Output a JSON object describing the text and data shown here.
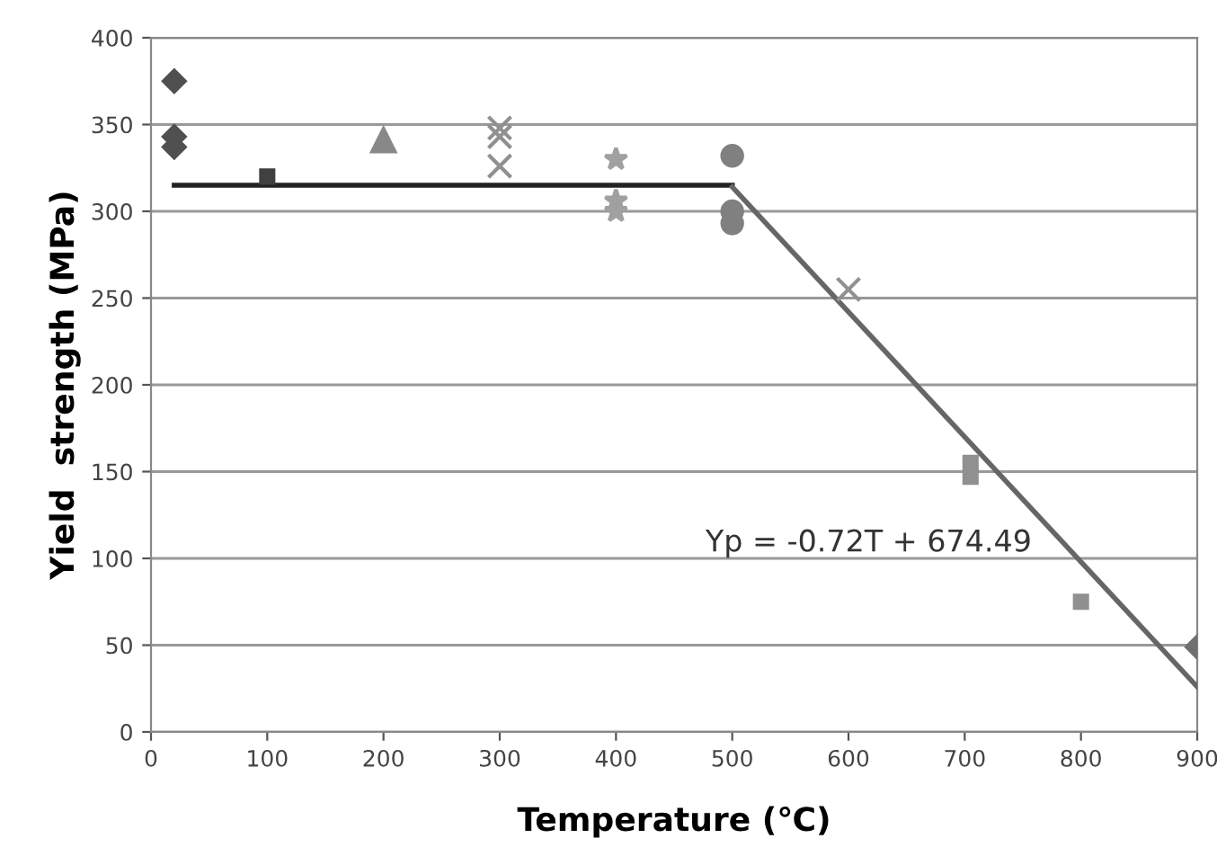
{
  "chart_data": {
    "type": "scatter",
    "xlabel": "Temperature (℃)",
    "ylabel": "Yield  strength (MPa)",
    "xlim": [
      0,
      900
    ],
    "ylim": [
      0,
      400
    ],
    "xticks": [
      0,
      100,
      200,
      300,
      400,
      500,
      600,
      700,
      800,
      900
    ],
    "yticks": [
      0,
      50,
      100,
      150,
      200,
      250,
      300,
      350,
      400
    ],
    "grid": "y",
    "legend": false,
    "annotations": [
      "Yp = -0.72T + 674.49"
    ],
    "series": [
      {
        "type": "line",
        "color": "#222222",
        "x": [
          20,
          500
        ],
        "values": [
          315,
          315
        ],
        "marker": "none"
      },
      {
        "type": "line",
        "color": "#666666",
        "x": [
          500,
          900
        ],
        "values": [
          314,
          26
        ],
        "marker": "none"
      },
      {
        "color": "#505050",
        "marker": "diamond",
        "x": [
          20,
          20,
          20
        ],
        "values": [
          375,
          343,
          337
        ]
      },
      {
        "color": "#404040",
        "marker": "square",
        "x": [
          100
        ],
        "values": [
          320
        ]
      },
      {
        "color": "#888888",
        "marker": "triangle",
        "x": [
          200
        ],
        "values": [
          341
        ]
      },
      {
        "color": "#909090",
        "marker": "cross",
        "x": [
          300,
          300,
          300
        ],
        "values": [
          348,
          343,
          326
        ]
      },
      {
        "color": "#a0a0a0",
        "marker": "star",
        "x": [
          400,
          400,
          400
        ],
        "values": [
          330,
          306,
          300
        ]
      },
      {
        "color": "#808080",
        "marker": "circle",
        "x": [
          500,
          500,
          500
        ],
        "values": [
          332,
          300,
          293
        ]
      },
      {
        "color": "#909090",
        "marker": "cross",
        "x": [
          600
        ],
        "values": [
          255
        ]
      },
      {
        "color": "#909090",
        "marker": "square",
        "x": [
          705,
          705,
          800
        ],
        "values": [
          155,
          147,
          75
        ]
      },
      {
        "color": "#707070",
        "marker": "diamond",
        "x": [
          900
        ],
        "values": [
          49
        ]
      }
    ]
  }
}
